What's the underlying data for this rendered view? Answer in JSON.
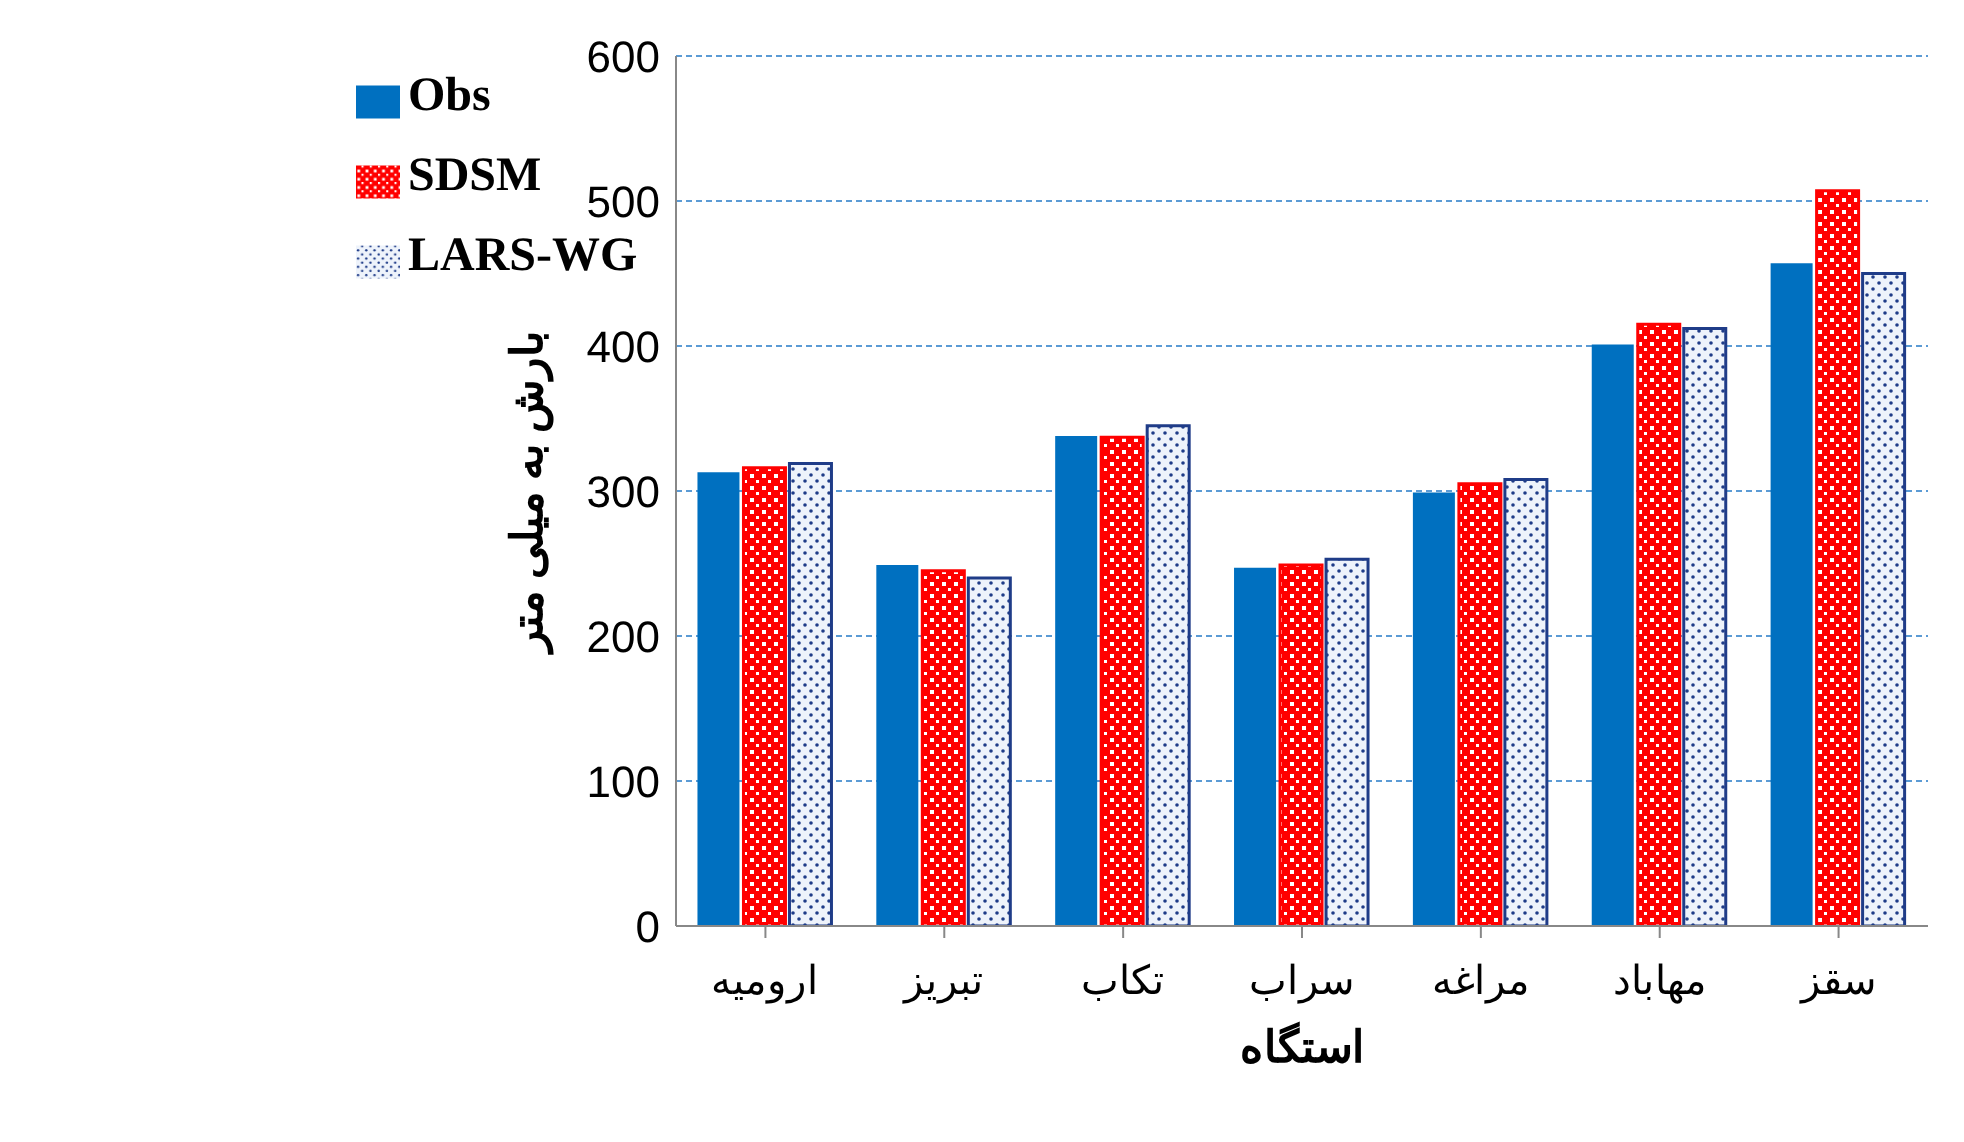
{
  "chart_data": {
    "type": "bar",
    "xlabel": "استگاه",
    "ylabel": "بارش به میلی متر",
    "categories": [
      "ارومیه",
      "تبریز",
      "تکاب",
      "سراب",
      "مراغه",
      "مهاباد",
      "سقز"
    ],
    "series": [
      {
        "name": "Obs",
        "color": "#0070c0",
        "values": [
          313,
          249,
          338,
          247,
          299,
          401,
          457
        ]
      },
      {
        "name": "SDSM",
        "color": "#ff0000",
        "values": [
          316,
          245,
          337,
          249,
          305,
          415,
          507
        ]
      },
      {
        "name": "LARS-WG",
        "color": "#1f3c88",
        "values": [
          319,
          240,
          345,
          253,
          308,
          412,
          450
        ]
      }
    ],
    "ylim": [
      0,
      600
    ],
    "yticks": [
      0,
      100,
      200,
      300,
      400,
      500,
      600
    ],
    "grid": "y",
    "legend": "top left"
  }
}
